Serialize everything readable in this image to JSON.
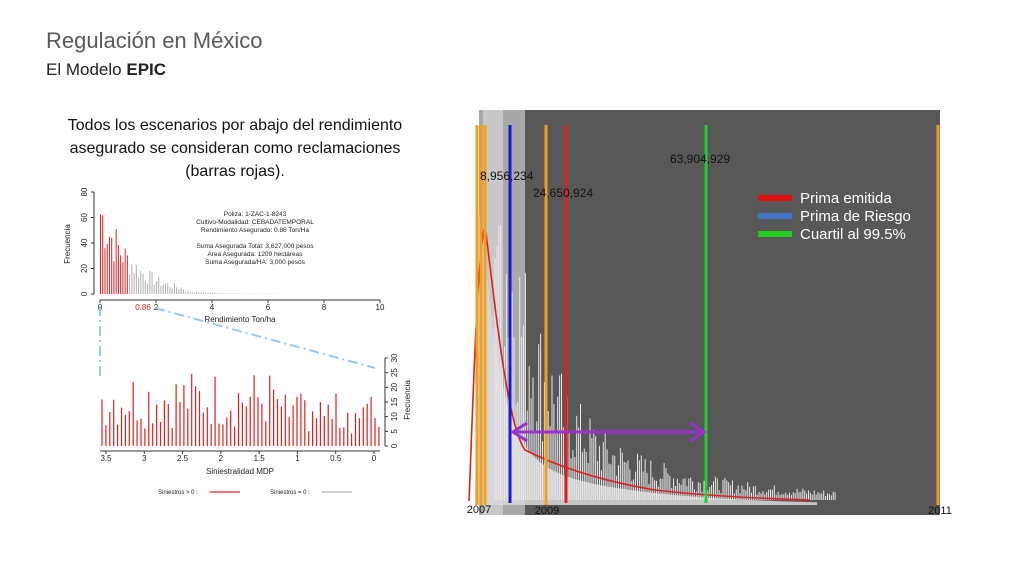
{
  "slide": {
    "title": "Regulación en México",
    "subtitle_prefix": "El",
    "subtitle_middle": "Modelo",
    "subtitle_bold": "EPIC",
    "description": "Todos los escenarios por abajo del rendimiento asegurado se consideran como reclamaciones (barras rojas)."
  },
  "chart_data": [
    {
      "type": "bar",
      "title": "",
      "xlabel": "Rendimiento Ton/ha",
      "ylabel": "Frecuencia",
      "xlim": [
        0,
        10
      ],
      "ylim": [
        0,
        80
      ],
      "x_ticks": [
        "0",
        "2",
        "4",
        "6",
        "8",
        "10"
      ],
      "y_ticks": [
        "0",
        "20",
        "40",
        "60",
        "80"
      ],
      "threshold_label": "0.86",
      "threshold_value": 0.86,
      "annotations": [
        "Poliza: 1-ZAC-1-8243",
        "Cultivo-Modalidad: CEBADATEMPORAL",
        "Rendimiento Asegurado: 0.86 Ton/Ha",
        "Suma Asegurada Total: 3,627,000 pesos",
        "Area Asegurada: 1209 hectáreas",
        "Suma Asegurada/HA: 3,000 pesos"
      ],
      "colors": {
        "claims": "#e02020",
        "no_claims": "#b0b0b0"
      }
    },
    {
      "type": "bar",
      "xlabel": "Siniestralidad MDP",
      "ylabel": "Frecuencia",
      "x_ticks": [
        "3.5",
        "3",
        "2.5",
        "2",
        "1.5",
        "1",
        "0.5",
        "0"
      ],
      "y_ticks": [
        "0",
        "5",
        "10",
        "15",
        "20",
        "25",
        "30"
      ],
      "ylim": [
        0,
        30
      ],
      "legend": [
        {
          "label": "Siniestros > 0 :",
          "color": "#e02020"
        },
        {
          "label": "Siniestros = 0 :",
          "color": "#b0b0b0"
        }
      ]
    },
    {
      "type": "line",
      "x_tick_labels": [
        "2007",
        "2009",
        "2011"
      ],
      "vertical_markers": [
        {
          "value_label": "8,956,234",
          "color": "#1a1ad0"
        },
        {
          "value_label": "24,650,924",
          "color": "#e02020"
        },
        {
          "value_label": "63,904,929",
          "color": "#22cc33"
        }
      ],
      "legend": [
        {
          "label": "Prima emitida",
          "color": "#e01010"
        },
        {
          "label": "Prima de Riesgo",
          "color": "#4472c4"
        },
        {
          "label": "Cuartil al 99.5%",
          "color": "#22cc22"
        }
      ],
      "colors": {
        "background": "#585858",
        "band_light": "#c8c8c8",
        "band_mid": "#a8a8a8",
        "orange_line": "#f0a020",
        "arrow": "#9b30d0"
      }
    }
  ]
}
